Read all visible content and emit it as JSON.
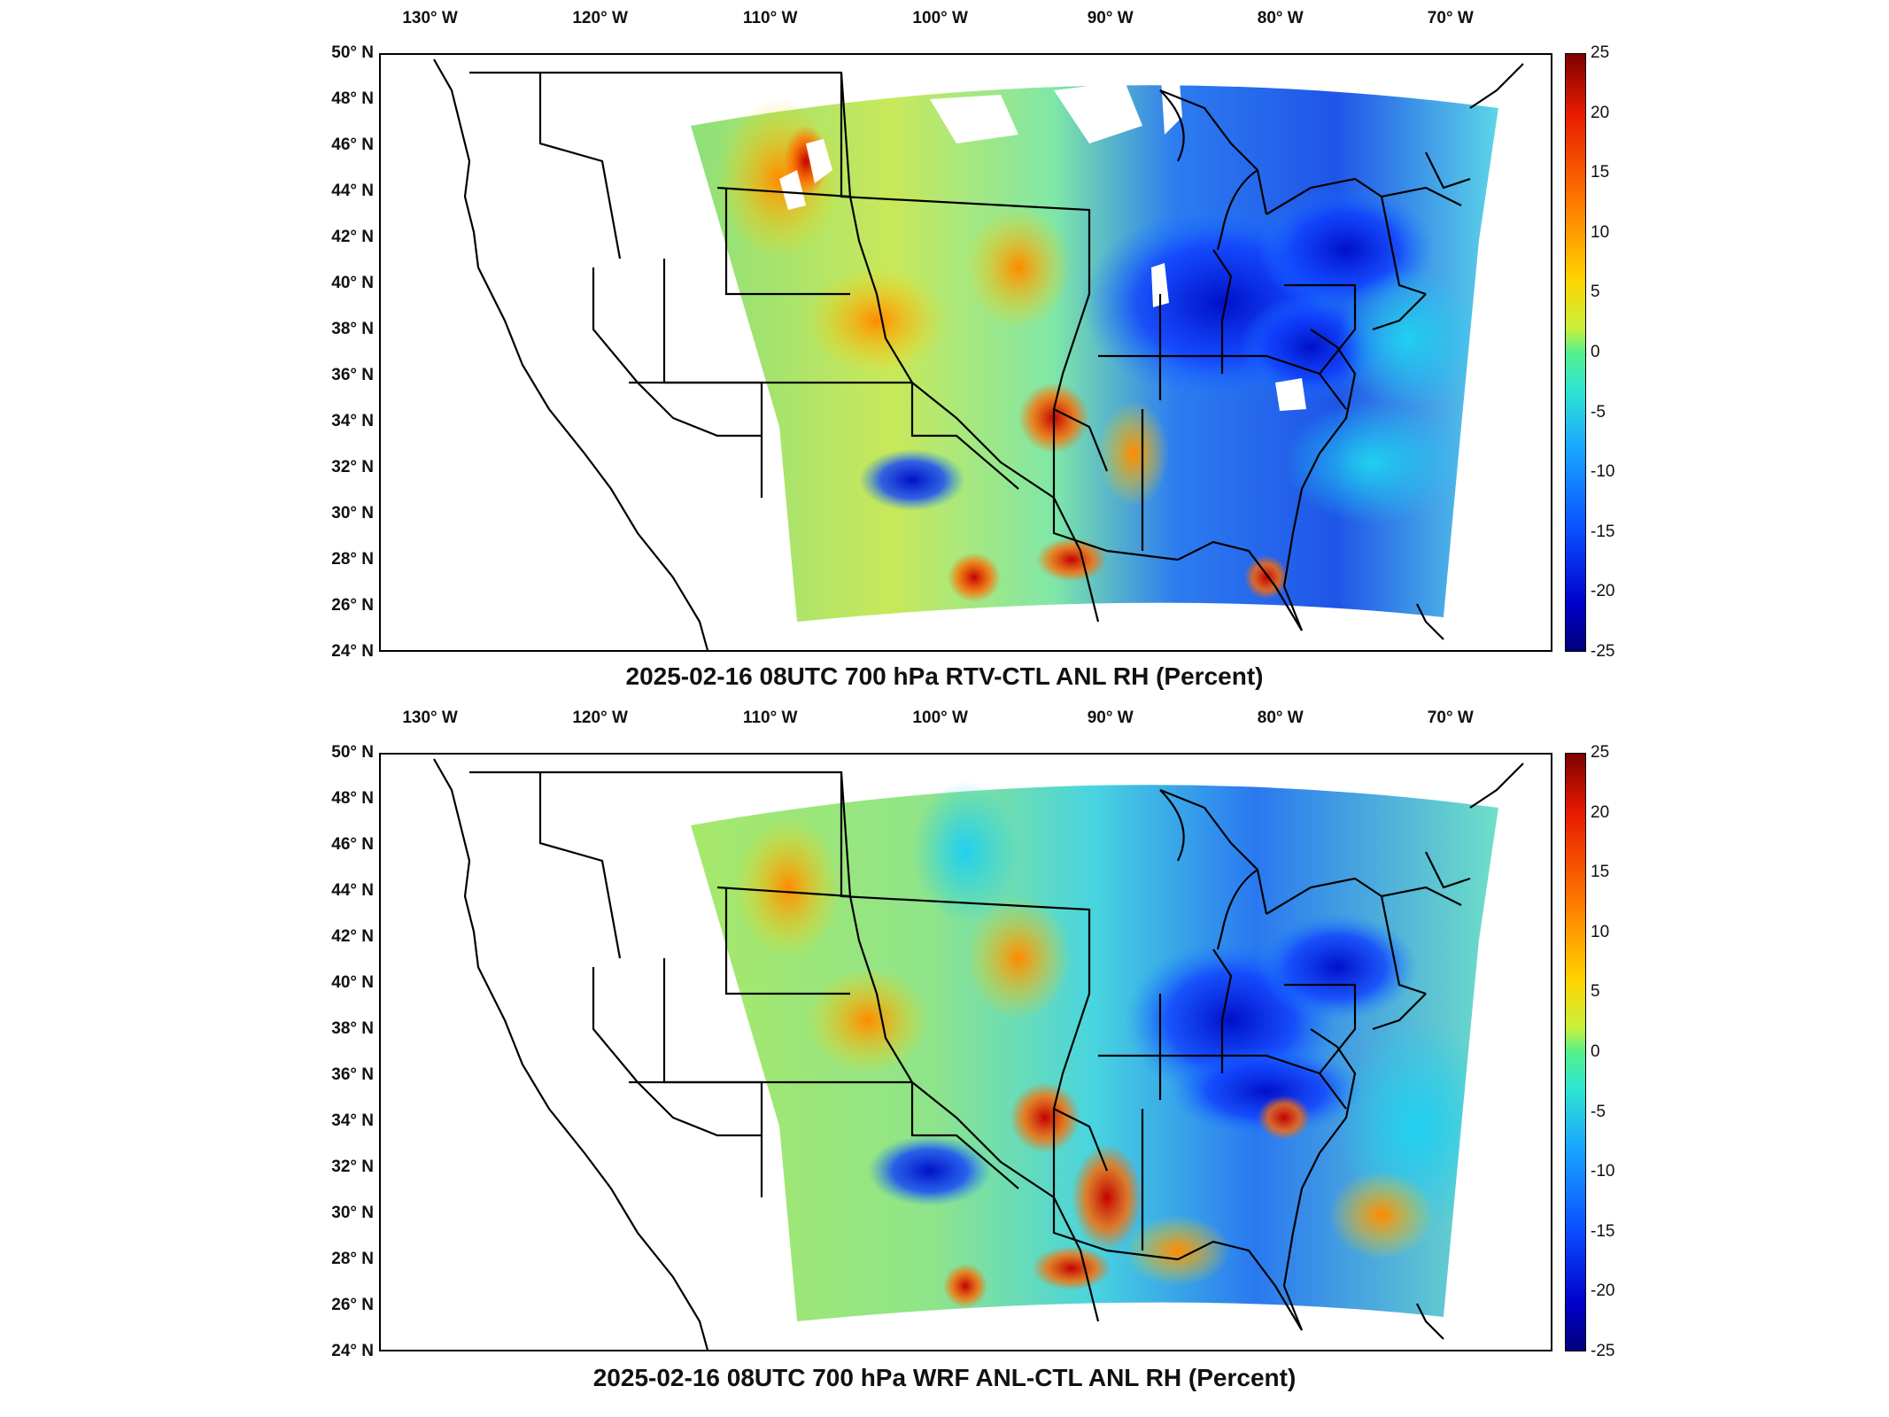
{
  "panels": [
    {
      "id": "top",
      "title": "2025-02-16 08UTC 700 hPa RTV-CTL ANL RH (Percent)"
    },
    {
      "id": "bottom",
      "title": "2025-02-16 08UTC 700 hPa WRF ANL-CTL ANL RH (Percent)"
    }
  ],
  "axes": {
    "lon_labels": [
      "130° W",
      "120° W",
      "110° W",
      "100° W",
      "90° W",
      "80° W",
      "70° W"
    ],
    "lat_labels": [
      "50° N",
      "48° N",
      "46° N",
      "44° N",
      "42° N",
      "40° N",
      "38° N",
      "36° N",
      "34° N",
      "32° N",
      "30° N",
      "28° N",
      "26° N",
      "24° N"
    ],
    "lon_range": [
      -133,
      -64
    ],
    "lat_range": [
      24,
      50
    ]
  },
  "colorbar": {
    "ticks": [
      "25",
      "20",
      "15",
      "10",
      "5",
      "0",
      "-5",
      "-10",
      "-15",
      "-20",
      "-25"
    ],
    "range": [
      -25,
      25
    ],
    "colormap": "jet",
    "colors": [
      "#7f0000",
      "#e81b00",
      "#ff7a00",
      "#ffd400",
      "#55f08c",
      "#1aa6ff",
      "#0000cc",
      "#00007a"
    ]
  }
}
